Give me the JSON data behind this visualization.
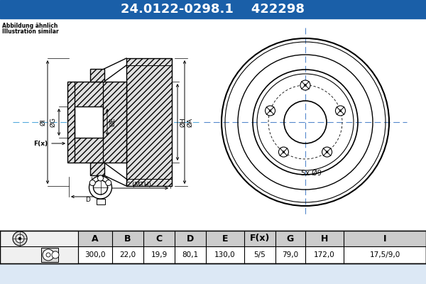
{
  "title_part1": "24.0122-0298.1",
  "title_part2": "422298",
  "title_bg": "#1a5fa8",
  "title_fg": "#ffffff",
  "subtitle1": "Abbildung ähnlich",
  "subtitle2": "Illustration similar",
  "bg_color": "#dce8f5",
  "table_headers": [
    "A",
    "B",
    "C",
    "D",
    "E",
    "F(x)",
    "G",
    "H",
    "I"
  ],
  "table_values": [
    "300,0",
    "22,0",
    "19,9",
    "80,1",
    "130,0",
    "5/5",
    "79,0",
    "172,0",
    "17,5/9,0"
  ],
  "annotation_5x9": "5x Ø9"
}
